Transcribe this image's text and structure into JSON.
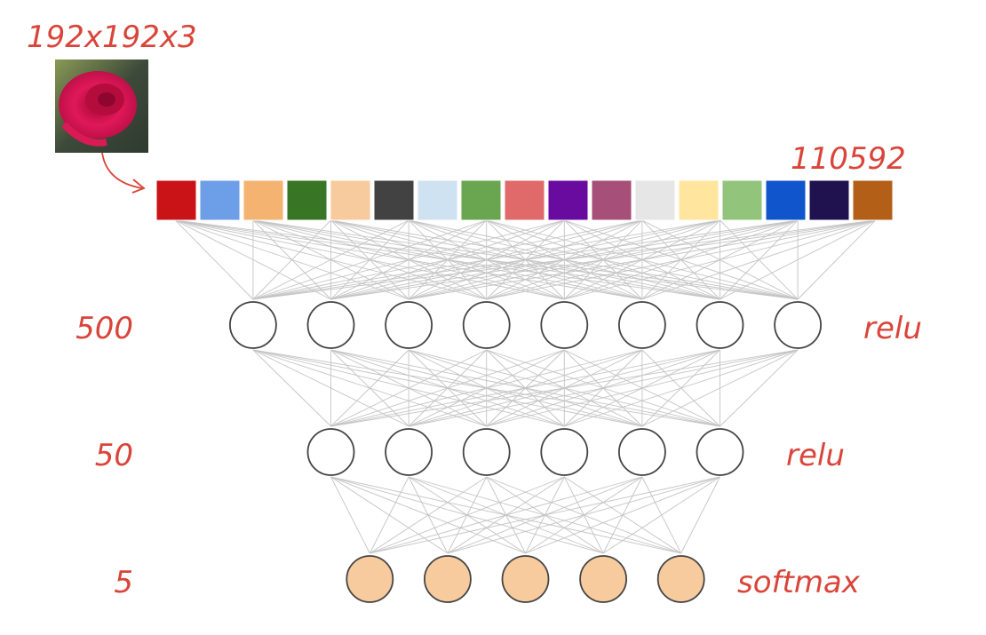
{
  "input": {
    "image_label": "192x192x3",
    "vector_label": "110592",
    "vector_colors": [
      "#c91317",
      "#6d9ee8",
      "#f4b370",
      "#387524",
      "#f7cb9e",
      "#424242",
      "#cfe2f2",
      "#6aa64f",
      "#e06a69",
      "#6a0ba0",
      "#a54f79",
      "#e6e6e6",
      "#ffe59d",
      "#93c47c",
      "#1155cc",
      "#1f124f",
      "#b45f18"
    ]
  },
  "layers": [
    {
      "size_label": "500",
      "activation": "relu",
      "nodes_drawn": 8,
      "fill": "#ffffff"
    },
    {
      "size_label": "50",
      "activation": "relu",
      "nodes_drawn": 6,
      "fill": "#ffffff"
    },
    {
      "size_label": "5",
      "activation": "softmax",
      "nodes_drawn": 5,
      "fill": "#f7cb9e"
    }
  ],
  "colors": {
    "label": "#d9453a",
    "edge": "#c4c4c4",
    "node_stroke": "#444444"
  }
}
